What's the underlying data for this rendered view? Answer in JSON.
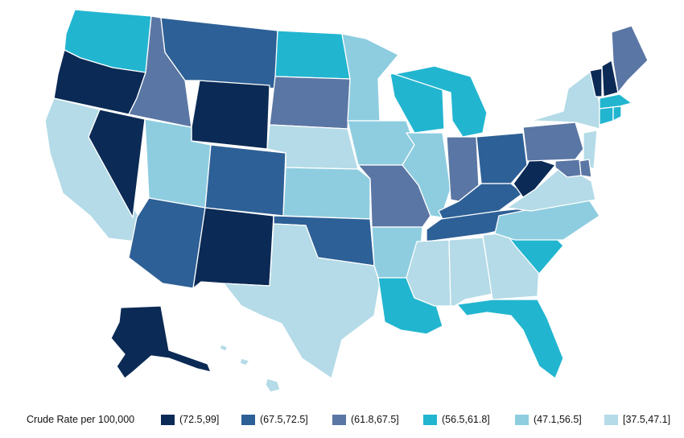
{
  "legend": {
    "title": "Crude Rate per 100,000",
    "bins": [
      {
        "label": "(72.5,99]",
        "color": "#0b2a55"
      },
      {
        "label": "(67.5,72.5]",
        "color": "#2d6096"
      },
      {
        "label": "(61.8,67.5]",
        "color": "#5a76a4"
      },
      {
        "label": "(56.5,61.8]",
        "color": "#22b5d0"
      },
      {
        "label": "(47.1,56.5]",
        "color": "#8ecde0"
      },
      {
        "label": "[37.5,47.1]",
        "color": "#b4dbe7"
      }
    ]
  },
  "states": {
    "WA": 3,
    "OR": 0,
    "CA": 5,
    "NV": 0,
    "ID": 2,
    "MT": 1,
    "WY": 0,
    "UT": 4,
    "AZ": 1,
    "CO": 1,
    "NM": 0,
    "ND": 3,
    "SD": 2,
    "NE": 5,
    "KS": 4,
    "OK": 1,
    "TX": 5,
    "MN": 4,
    "IA": 4,
    "MO": 2,
    "AR": 4,
    "LA": 3,
    "WI": 3,
    "IL": 4,
    "MI": 3,
    "IN": 2,
    "OH": 1,
    "KY": 1,
    "TN": 1,
    "MS": 5,
    "AL": 5,
    "GA": 5,
    "FL": 3,
    "SC": 3,
    "NC": 4,
    "VA": 5,
    "WV": 0,
    "PA": 2,
    "NY": 5,
    "VT": 0,
    "NH": 0,
    "ME": 2,
    "MA": 3,
    "CT": 3,
    "RI": 3,
    "NJ": 5,
    "DE": 2,
    "MD": 2,
    "AK": 0,
    "HI": 5
  }
}
